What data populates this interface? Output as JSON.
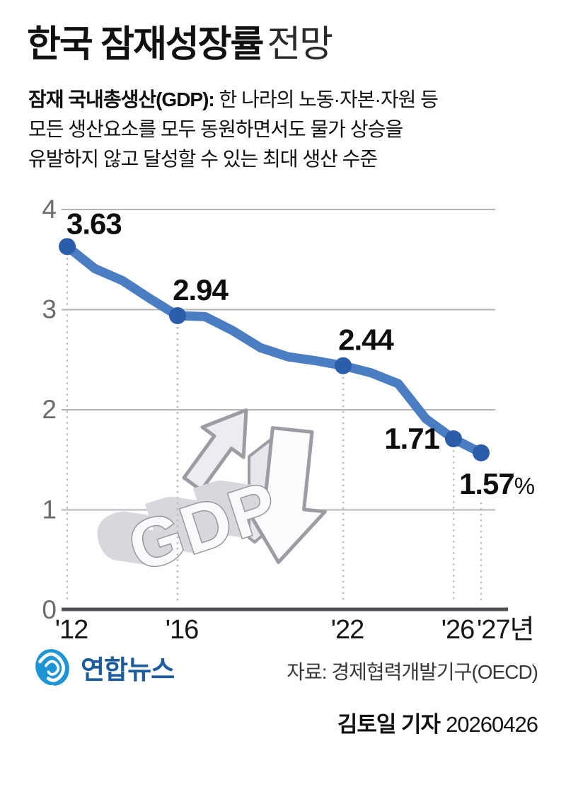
{
  "header": {
    "title_bold": "한국 잠재성장률",
    "title_light": "전망",
    "subtitle_bold": "잠재 국내총생산(GDP):",
    "subtitle_line1_rest": "한 나라의 노동·자본·자원 등",
    "subtitle_line2": "모든 생산요소를 모두 동원하면서도 물가 상승을",
    "subtitle_line3": "유발하지 않고 달성할 수 있는 최대 생산 수준"
  },
  "chart_data": {
    "type": "line",
    "title": "한국 잠재성장률 전망",
    "unit": "%",
    "x": [
      2012,
      2013,
      2014,
      2015,
      2016,
      2017,
      2018,
      2019,
      2020,
      2021,
      2022,
      2023,
      2024,
      2025,
      2026,
      2027
    ],
    "values": [
      3.63,
      3.41,
      3.29,
      3.11,
      2.94,
      2.93,
      2.79,
      2.62,
      2.53,
      2.49,
      2.44,
      2.37,
      2.26,
      1.91,
      1.71,
      1.57
    ],
    "labeled_points": [
      {
        "year": 2012,
        "value": 3.63,
        "label": "3.63",
        "suffix": "",
        "placement": "above-right"
      },
      {
        "year": 2016,
        "value": 2.94,
        "label": "2.94",
        "suffix": "",
        "placement": "above"
      },
      {
        "year": 2022,
        "value": 2.44,
        "label": "2.44",
        "suffix": "",
        "placement": "above"
      },
      {
        "year": 2026,
        "value": 1.71,
        "label": "1.71",
        "suffix": "",
        "placement": "left"
      },
      {
        "year": 2027,
        "value": 1.57,
        "label": "1.57",
        "suffix": "%",
        "placement": "below"
      }
    ],
    "x_ticks": [
      {
        "year": 2012,
        "label": "'12"
      },
      {
        "year": 2016,
        "label": "'16"
      },
      {
        "year": 2022,
        "label": "'22"
      },
      {
        "year": 2026,
        "label": "'26"
      },
      {
        "year": 2027,
        "label": "'27년"
      }
    ],
    "y_ticks": [
      4,
      3,
      2,
      1,
      0
    ],
    "ylim": [
      0,
      4
    ],
    "grid": true,
    "legend_position": "none",
    "line_color": "#4b7dc3",
    "marker_color": "#2b5da9",
    "grid_color": "#b3b3b8",
    "axis_color": "#515156",
    "dotted_guide_color": "#bcbcc1",
    "watermark_text": "GDP"
  },
  "footer": {
    "logo_text": "연합뉴스",
    "logo_icon": "yonhap-swirl-icon",
    "logo_blue": "#1e95d4",
    "logo_text_blue": "#1d5c9e",
    "source": "자료: 경제협력개발기구(OECD)",
    "credit_name": "김토일 기자",
    "credit_date": "20260426"
  }
}
